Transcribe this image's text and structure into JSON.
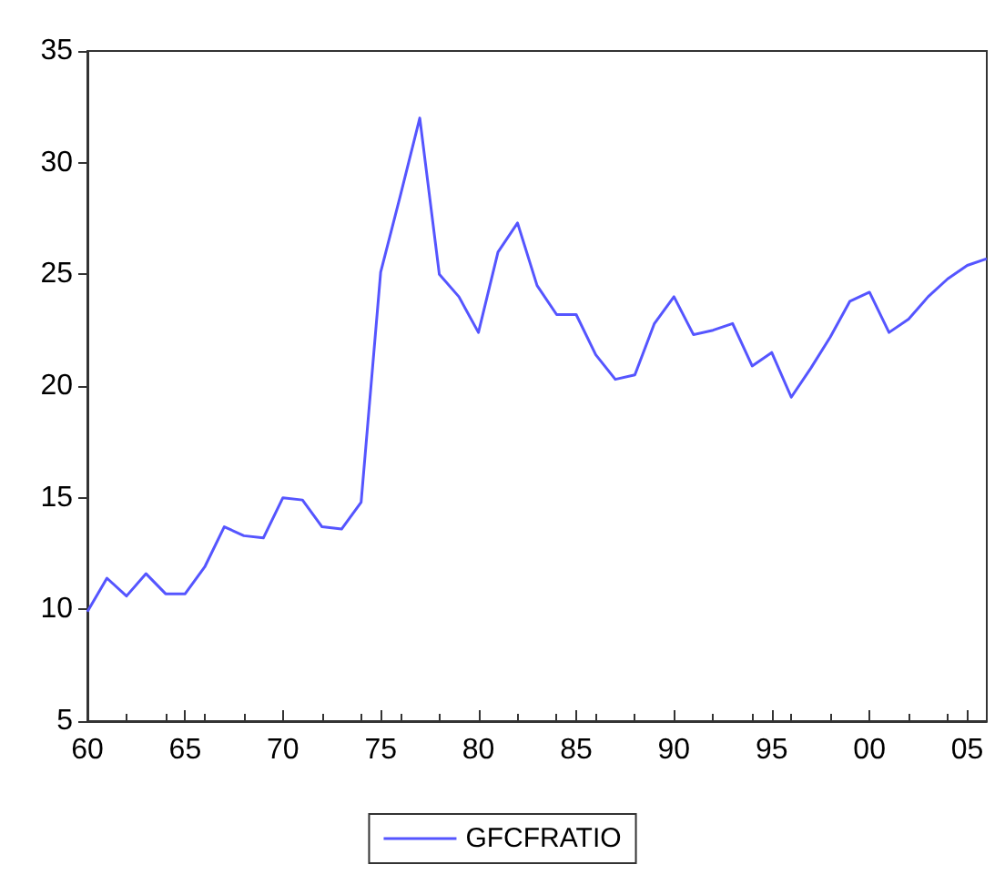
{
  "chart_data": {
    "type": "line",
    "x": [
      1960,
      1961,
      1962,
      1963,
      1964,
      1965,
      1966,
      1967,
      1968,
      1969,
      1970,
      1971,
      1972,
      1973,
      1974,
      1975,
      1976,
      1977,
      1978,
      1979,
      1980,
      1981,
      1982,
      1983,
      1984,
      1985,
      1986,
      1987,
      1988,
      1989,
      1990,
      1991,
      1992,
      1993,
      1994,
      1995,
      1996,
      1997,
      1998,
      1999,
      2000,
      2001,
      2002,
      2003,
      2004,
      2005,
      2006
    ],
    "series": [
      {
        "name": "GFCFRATIO",
        "color": "#5555ff",
        "values": [
          9.9,
          11.4,
          10.6,
          11.6,
          10.7,
          10.7,
          11.9,
          13.7,
          13.3,
          13.2,
          15.0,
          14.9,
          13.7,
          13.6,
          14.8,
          25.1,
          28.5,
          32.0,
          25.0,
          24.0,
          22.4,
          26.0,
          27.3,
          24.5,
          23.2,
          23.2,
          21.4,
          20.3,
          20.5,
          22.8,
          24.0,
          22.3,
          22.5,
          22.8,
          20.9,
          21.5,
          19.5,
          20.8,
          22.2,
          23.8,
          24.2,
          22.4,
          23.0,
          24.0,
          24.8,
          25.4,
          25.7
        ]
      }
    ],
    "xlim": [
      1960,
      2006
    ],
    "xticks": [
      {
        "value": 1960,
        "label": "60"
      },
      {
        "value": 1965,
        "label": "65"
      },
      {
        "value": 1970,
        "label": "70"
      },
      {
        "value": 1975,
        "label": "75"
      },
      {
        "value": 1980,
        "label": "80"
      },
      {
        "value": 1985,
        "label": "85"
      },
      {
        "value": 1990,
        "label": "90"
      },
      {
        "value": 1995,
        "label": "95"
      },
      {
        "value": 2000,
        "label": "00"
      },
      {
        "value": 2005,
        "label": "05"
      }
    ],
    "ylim": [
      5,
      35
    ],
    "yticks": [
      5,
      10,
      15,
      20,
      25,
      30,
      35
    ],
    "legend": "bottom",
    "marker": "none",
    "line_style": "solid",
    "grid": false
  }
}
